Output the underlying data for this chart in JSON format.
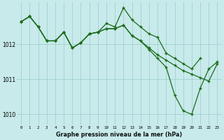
{
  "xlabel": "Graphe pression niveau de la mer (hPa)",
  "bg_color": "#c8eaea",
  "grid_color": "#99cccc",
  "line_color": "#1a6b1a",
  "ylim": [
    1009.7,
    1013.2
  ],
  "yticks": [
    1010,
    1011,
    1012
  ],
  "ytick_labels": [
    "1010",
    "1011",
    "1012"
  ],
  "x_ticks": [
    0,
    1,
    2,
    3,
    4,
    5,
    6,
    7,
    8,
    9,
    10,
    11,
    12,
    13,
    14,
    15,
    16,
    17,
    18,
    19,
    20,
    21,
    22,
    23
  ],
  "series1_x": [
    0,
    1,
    2,
    3,
    4,
    5,
    6,
    7,
    8,
    9,
    10,
    11,
    12,
    13,
    14,
    15,
    16,
    17,
    18,
    19,
    20,
    21,
    22,
    23
  ],
  "series1_y": [
    1012.65,
    1012.8,
    1012.5,
    1012.1,
    1012.1,
    1012.35,
    1011.9,
    1012.05,
    1012.3,
    1012.35,
    1012.45,
    1012.45,
    1012.55,
    1012.25,
    1012.1,
    1011.9,
    1011.7,
    1011.55,
    1011.4,
    1011.25,
    1011.15,
    1011.05,
    1010.95,
    1011.45
  ],
  "series2_x": [
    0,
    1,
    2,
    3,
    4,
    5,
    6,
    7,
    8,
    9,
    10,
    11,
    12,
    13,
    14,
    15,
    16,
    17,
    18,
    19,
    20,
    21,
    22,
    23
  ],
  "series2_y": [
    1012.65,
    1012.8,
    1012.5,
    1012.1,
    1012.1,
    1012.35,
    1011.9,
    1012.05,
    1012.3,
    1012.35,
    1012.45,
    1012.45,
    1012.55,
    1012.25,
    1012.1,
    1011.85,
    1011.6,
    1011.35,
    1010.55,
    1010.1,
    1010.0,
    1010.75,
    1011.3,
    1011.5
  ],
  "series3_x": [
    0,
    1,
    2,
    3,
    4,
    5,
    6,
    7,
    8,
    9,
    10,
    11,
    12,
    13,
    14,
    15,
    16,
    17,
    18,
    19,
    20,
    21
  ],
  "series3_y": [
    1012.65,
    1012.8,
    1012.5,
    1012.1,
    1012.1,
    1012.35,
    1011.9,
    1012.05,
    1012.3,
    1012.35,
    1012.6,
    1012.5,
    1013.05,
    1012.7,
    1012.5,
    1012.3,
    1012.2,
    1011.75,
    1011.6,
    1011.45,
    1011.3,
    1011.6
  ]
}
